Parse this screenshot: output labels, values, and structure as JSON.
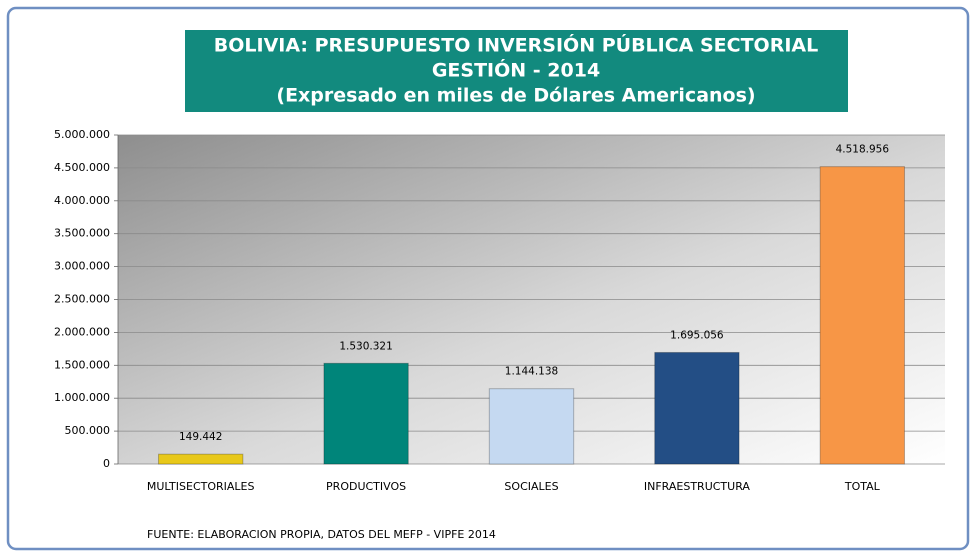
{
  "chart_data": {
    "type": "bar",
    "title": [
      "BOLIVIA: PRESUPUESTO INVERSIÓN PÚBLICA SECTORIAL",
      "GESTIÓN - 2014",
      "(Expresado en miles de Dólares Americanos)"
    ],
    "categories": [
      "MULTISECTORIALES",
      "PRODUCTIVOS",
      "SOCIALES",
      "INFRAESTRUCTURA",
      "TOTAL"
    ],
    "values": [
      149442,
      1530321,
      1144138,
      1695056,
      4518956
    ],
    "value_labels": [
      "149.442",
      "1.530.321",
      "1.144.138",
      "1.695.056",
      "4.518.956"
    ],
    "colors": [
      "#e8c81a",
      "#00857a",
      "#c5d9f1",
      "#234e85",
      "#f79646"
    ],
    "ylim": [
      0,
      5000000
    ],
    "yticks": [
      0,
      {
        "value": 500000,
        "label": "500.000"
      },
      {
        "value": 1000000,
        "label": "1.000.000"
      },
      {
        "value": 1500000,
        "label": "1.500.000"
      },
      {
        "value": 2000000,
        "label": "2.000.000"
      },
      {
        "value": 2500000,
        "label": "2.500.000"
      },
      {
        "value": 3000000,
        "label": "3.000.000"
      },
      {
        "value": 3500000,
        "label": "3.500.000"
      },
      {
        "value": 4000000,
        "label": "4.000.000"
      },
      {
        "value": 4500000,
        "label": "4.500.000"
      },
      {
        "value": 5000000,
        "label": "5.000.000"
      }
    ],
    "grid": true,
    "source": "FUENTE: ELABORACION  PROPIA, DATOS DEL MEFP - VIPFE 2014"
  }
}
